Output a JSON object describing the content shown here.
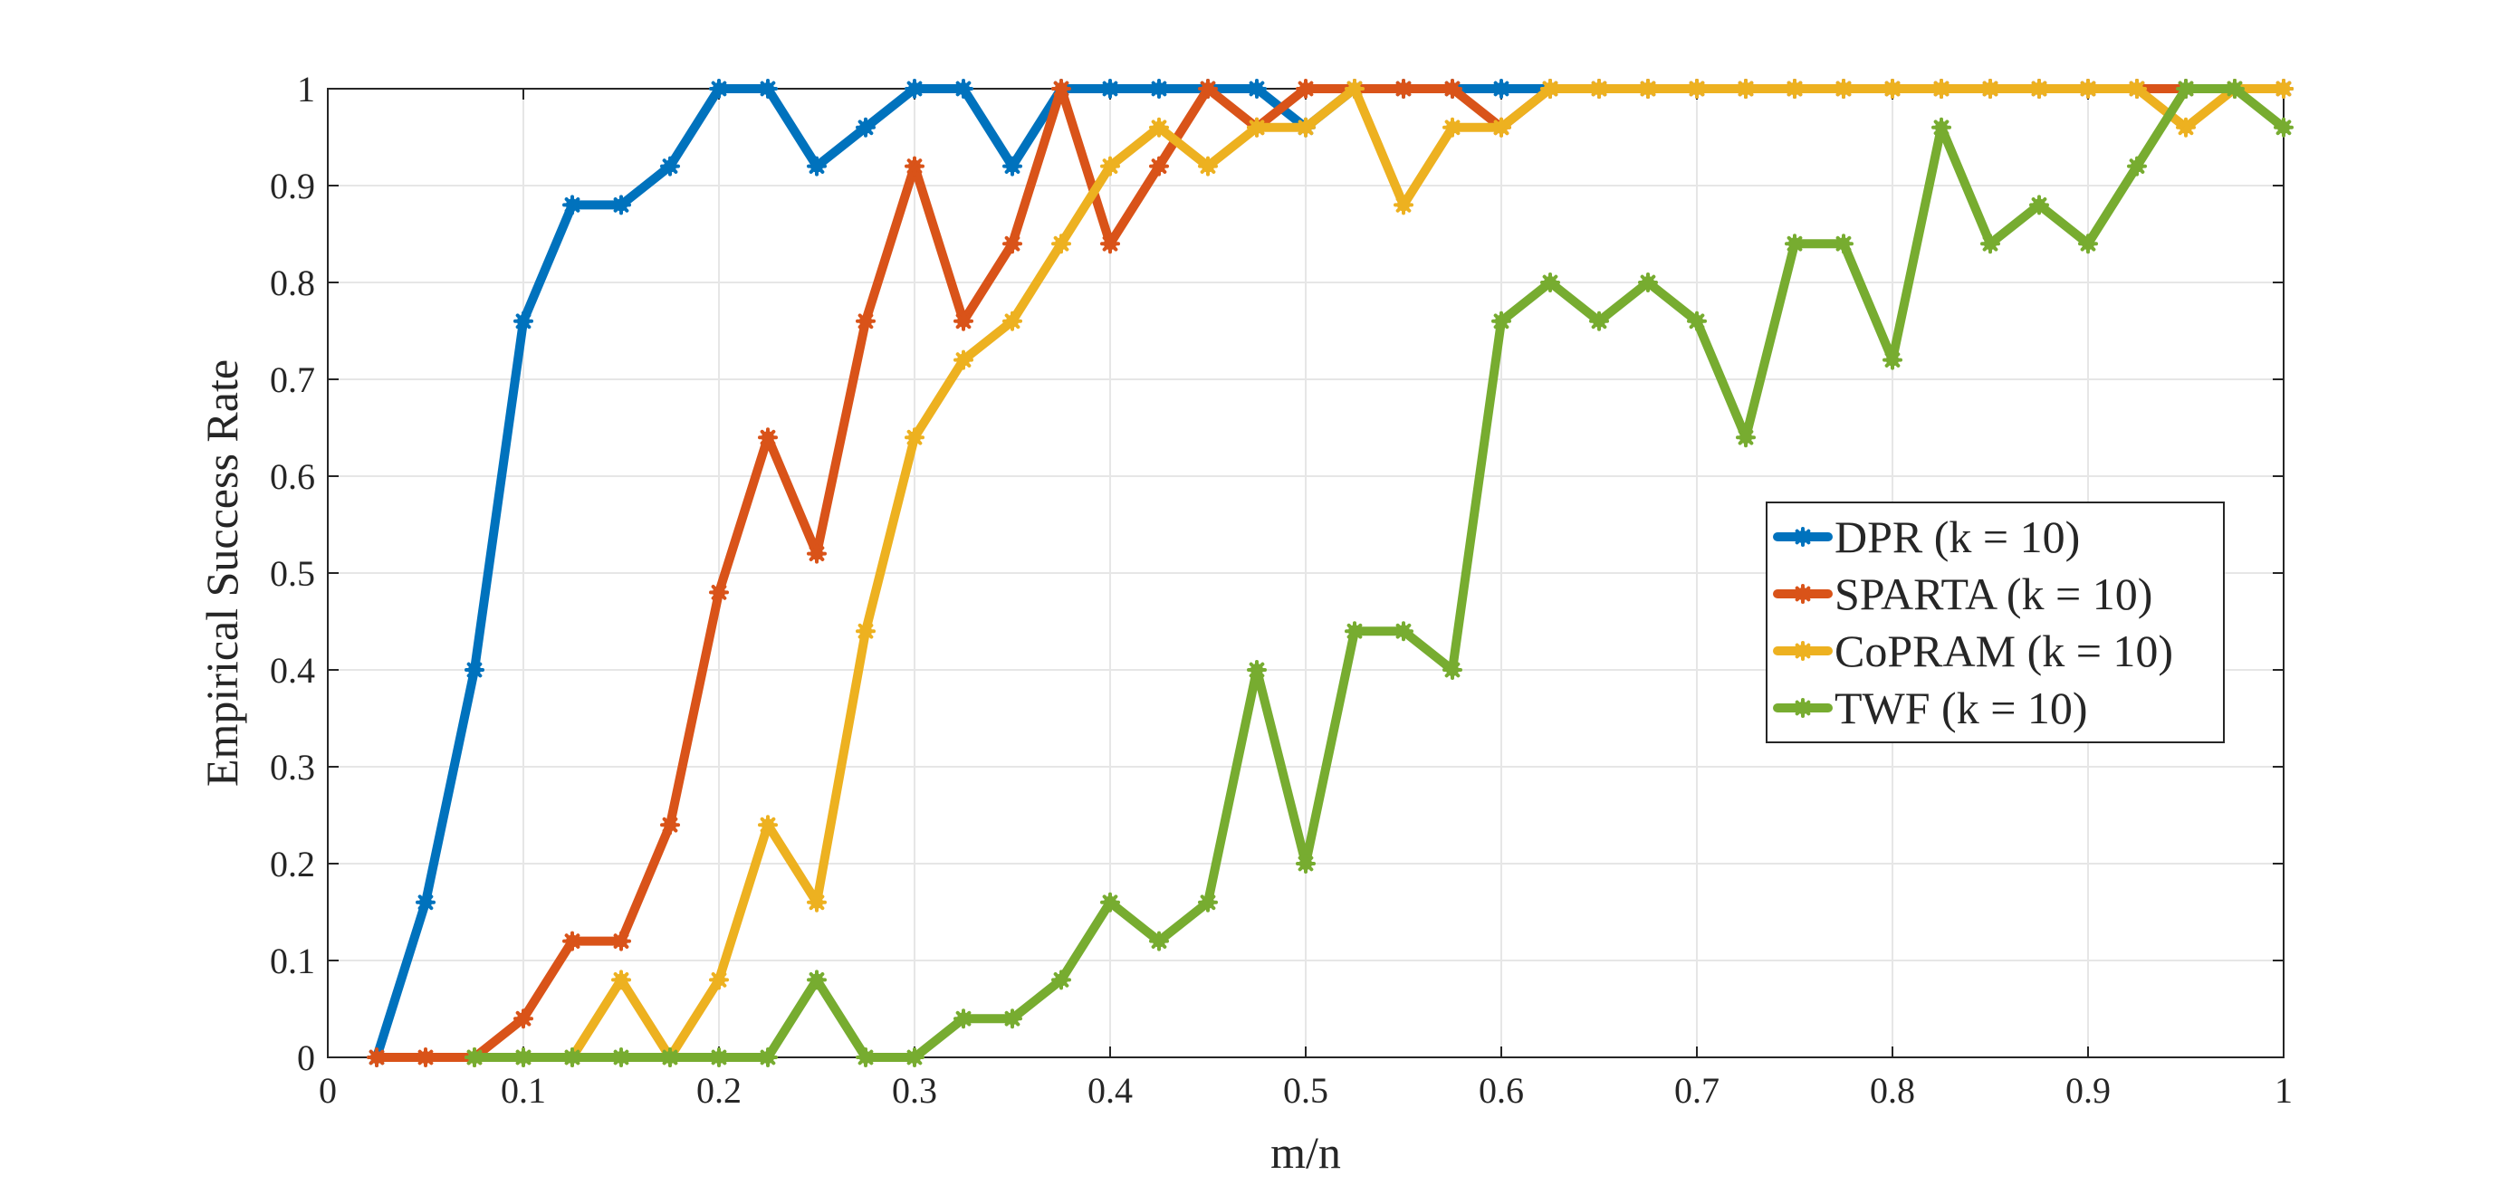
{
  "chart_data": {
    "type": "line",
    "title": "",
    "xlabel": "m/n",
    "ylabel": "Empirical Success Rate",
    "xlim": [
      0,
      1
    ],
    "ylim": [
      0,
      1
    ],
    "grid": true,
    "legend_position": "right-center",
    "x_ticks": [
      "0",
      "0.1",
      "0.2",
      "0.3",
      "0.4",
      "0.5",
      "0.6",
      "0.7",
      "0.8",
      "0.9",
      "1"
    ],
    "y_ticks": [
      "0",
      "0.1",
      "0.2",
      "0.3",
      "0.4",
      "0.5",
      "0.6",
      "0.7",
      "0.8",
      "0.9",
      "1"
    ],
    "x": [
      0.025,
      0.05,
      0.075,
      0.1,
      0.125,
      0.15,
      0.175,
      0.2,
      0.225,
      0.25,
      0.275,
      0.3,
      0.325,
      0.35,
      0.375,
      0.4,
      0.425,
      0.45,
      0.475,
      0.5,
      0.525,
      0.55,
      0.575,
      0.6,
      0.625,
      0.65,
      0.675,
      0.7,
      0.725,
      0.75,
      0.775,
      0.8,
      0.825,
      0.85,
      0.875,
      0.9,
      0.925,
      0.95,
      0.975,
      1.0
    ],
    "series": [
      {
        "name": "DPR (k = 10)",
        "color": "#0072BD",
        "values": [
          0,
          0.16,
          0.4,
          0.76,
          0.88,
          0.88,
          0.92,
          1,
          1,
          0.92,
          0.96,
          1,
          1,
          0.92,
          1,
          1,
          1,
          1,
          1,
          0.96,
          1,
          1,
          1,
          1,
          1,
          1,
          1,
          1,
          1,
          1,
          1,
          1,
          1,
          1,
          1,
          1,
          1,
          1,
          1,
          1
        ]
      },
      {
        "name": "SPARTA (k = 10)",
        "color": "#D95319",
        "values": [
          0,
          0,
          0,
          0.04,
          0.12,
          0.12,
          0.24,
          0.48,
          0.64,
          0.52,
          0.76,
          0.92,
          0.76,
          0.84,
          1,
          0.84,
          0.92,
          1,
          0.96,
          1,
          1,
          1,
          1,
          0.96,
          1,
          1,
          1,
          1,
          1,
          1,
          1,
          1,
          1,
          1,
          1,
          1,
          1,
          1,
          1,
          1
        ]
      },
      {
        "name": "CoPRAM (k = 10)",
        "color": "#EDB120",
        "values": [
          null,
          null,
          0,
          0,
          0,
          0.08,
          0,
          0.08,
          0.24,
          0.16,
          0.44,
          0.64,
          0.72,
          0.76,
          0.84,
          0.92,
          0.96,
          0.92,
          0.96,
          0.96,
          1,
          0.88,
          0.96,
          0.96,
          1,
          1,
          1,
          1,
          1,
          1,
          1,
          1,
          1,
          1,
          1,
          1,
          1,
          0.96,
          1,
          1
        ]
      },
      {
        "name": "TWF (k = 10)",
        "color": "#77AC30",
        "values": [
          null,
          null,
          0,
          0,
          0,
          0,
          0,
          0,
          0,
          0.08,
          0,
          0,
          0.04,
          0.04,
          0.08,
          0.16,
          0.12,
          0.16,
          0.4,
          0.2,
          0.44,
          0.44,
          0.4,
          0.76,
          0.8,
          0.76,
          0.8,
          0.76,
          0.64,
          0.84,
          0.84,
          0.72,
          0.96,
          0.84,
          0.88,
          0.84,
          0.92,
          1,
          1,
          0.96
        ]
      }
    ]
  }
}
